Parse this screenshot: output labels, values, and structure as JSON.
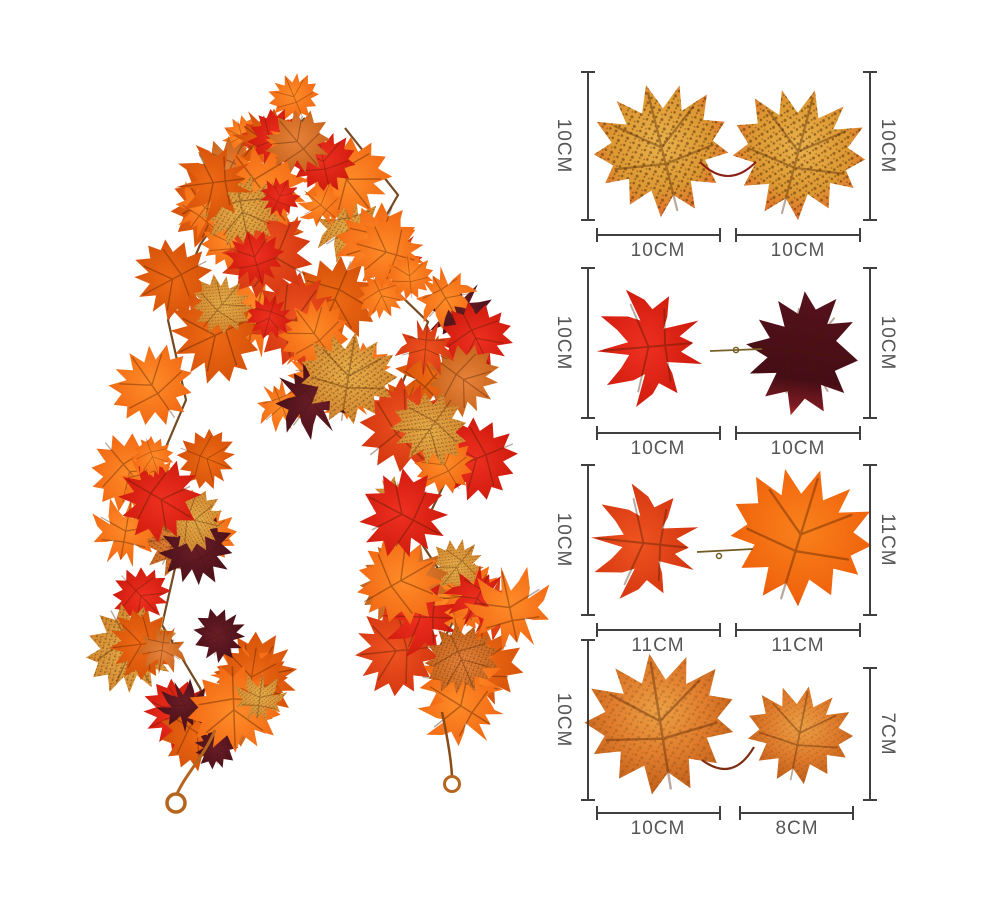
{
  "product": {
    "subject": "artificial autumn maple leaf garland with hanging wire loops"
  },
  "garland": {
    "palette": [
      "#ff8c28",
      "#ef6a14",
      "#ef3020",
      "#ef5420",
      "#e9af4a",
      "#e8823a",
      "#6a1d28"
    ],
    "vine_color": "#6b4016",
    "loop_color": "#b5651d"
  },
  "dimension_style": {
    "line_color": "#3f3f3f",
    "label_color": "#555555"
  },
  "size_diagrams": {
    "unit": "CM",
    "rows": [
      {
        "pair": "speckled gold-orange maple pair",
        "left_height": "10CM",
        "right_height": "10CM",
        "left_width": "10CM",
        "right_width": "10CM"
      },
      {
        "pair": "bright red and dark maroon maple pair",
        "left_height": "10CM",
        "right_height": "10CM",
        "left_width": "10CM",
        "right_width": "10CM"
      },
      {
        "pair": "red-orange and bright orange maple pair",
        "left_height": "10CM",
        "right_height": "11CM",
        "left_width": "11CM",
        "right_width": "11CM"
      },
      {
        "pair": "burnt orange maple pair",
        "left_height": "10CM",
        "right_height": "7CM",
        "left_width": "10CM",
        "right_width": "8CM"
      }
    ]
  }
}
